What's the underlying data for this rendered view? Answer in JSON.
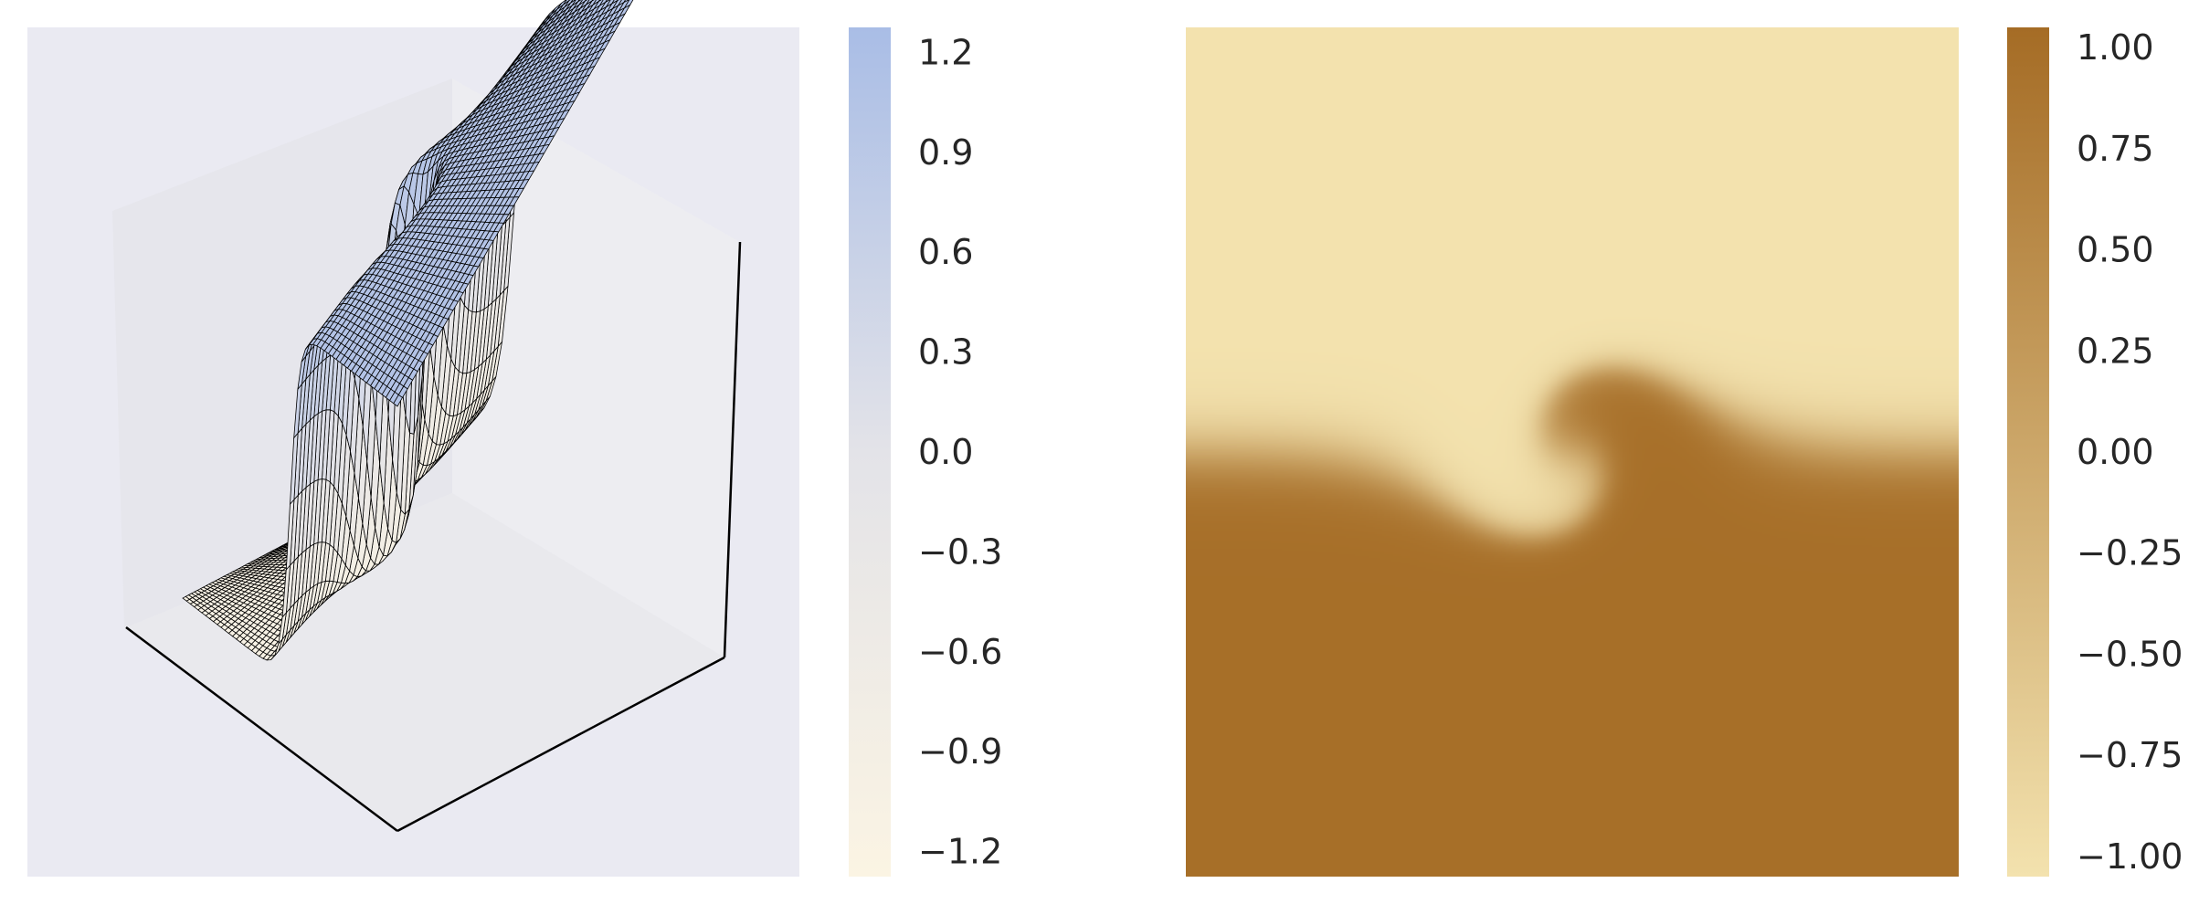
{
  "colors": {
    "figure_bg": "#ffffff",
    "panel_bg": "#eaeaf2",
    "pane_left": "#e6e6ec",
    "pane_right": "#ededf1",
    "pane_floor": "#e9e9ed",
    "surface_high": "#a9bde6",
    "surface_mid": "#e3e3e8",
    "surface_low": "#fbf4e3",
    "heat_high": "#a56c25",
    "heat_low": "#f3e2ae",
    "axis_line": "#000000",
    "wire": "#000000"
  },
  "chart_data": [
    {
      "type": "surface3d",
      "description_of_function": "front-like ridge surface z(x, y), clipped to [-1, 1]",
      "zlim": [
        -1.2,
        1.2
      ],
      "colorbar": {
        "ticks": [
          1.2,
          0.9,
          0.6,
          0.3,
          0.0,
          -0.3,
          -0.6,
          -0.9,
          -1.2
        ],
        "tick_labels": [
          "1.2",
          "0.9",
          "0.6",
          "0.3",
          "0.0",
          "−0.3",
          "−0.6",
          "−0.9",
          "−1.2"
        ],
        "colormap": [
          "#fbf4e3",
          "#e3e3e8",
          "#a9bde6"
        ]
      },
      "grid": "off",
      "axis_labels": "none"
    },
    {
      "type": "heatmap",
      "description_of_function": "spiral (vortex) front field, values in [-1, 1]",
      "zlim": [
        -1.0,
        1.05
      ],
      "colorbar": {
        "ticks": [
          1.0,
          0.75,
          0.5,
          0.25,
          0.0,
          -0.25,
          -0.5,
          -0.75,
          -1.0
        ],
        "tick_labels": [
          "1.00",
          "0.75",
          "0.50",
          "0.25",
          "0.00",
          "−0.25",
          "−0.50",
          "−0.75",
          "−1.00"
        ],
        "colormap": [
          "#f3e2ae",
          "#a56c25"
        ]
      },
      "grid": "off",
      "axis_labels": "none"
    }
  ]
}
